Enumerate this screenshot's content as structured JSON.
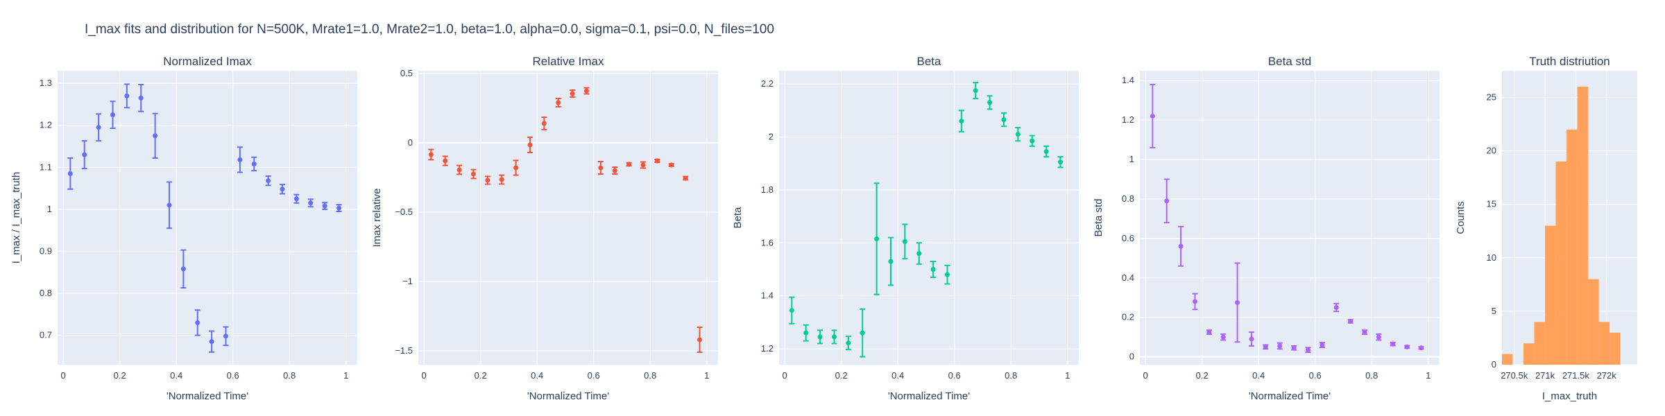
{
  "figure_title": "I_max fits and distribution for N=500K, Mrate1=1.0, Mrate2=1.0, beta=1.0, alpha=0.0, sigma=0.1,  psi=0.0, N_files=100",
  "chart_data": [
    {
      "type": "scatter",
      "title": "Normalized Imax",
      "xlabel": "'Normalized Time'",
      "ylabel": "I_max / I_max_truth",
      "color": "#636efa",
      "xlim": [
        -0.02,
        1.04
      ],
      "ylim": [
        0.63,
        1.33
      ],
      "x_ticks": [
        0,
        0.2,
        0.4,
        0.6,
        0.8,
        1
      ],
      "x_tick_labels": [
        "0",
        "0.2",
        "0.4",
        "0.6",
        "0.8",
        "1"
      ],
      "y_ticks": [
        0.7,
        0.8,
        0.9,
        1.0,
        1.1,
        1.2,
        1.3
      ],
      "y_tick_labels": [
        "0.7",
        "0.8",
        "0.9",
        "1",
        "1.1",
        "1.2",
        "1.3"
      ],
      "x": [
        0.025,
        0.075,
        0.125,
        0.175,
        0.225,
        0.275,
        0.325,
        0.375,
        0.425,
        0.475,
        0.525,
        0.575,
        0.625,
        0.675,
        0.725,
        0.775,
        0.825,
        0.875,
        0.925,
        0.975
      ],
      "y": [
        1.085,
        1.13,
        1.195,
        1.225,
        1.27,
        1.265,
        1.175,
        1.01,
        0.858,
        0.73,
        0.685,
        0.698,
        1.118,
        1.108,
        1.068,
        1.048,
        1.025,
        1.015,
        1.008,
        1.003
      ],
      "err": [
        0.037,
        0.033,
        0.032,
        0.032,
        0.028,
        0.032,
        0.053,
        0.055,
        0.045,
        0.03,
        0.025,
        0.022,
        0.03,
        0.016,
        0.011,
        0.011,
        0.01,
        0.009,
        0.008,
        0.008
      ]
    },
    {
      "type": "scatter",
      "title": "Relative Imax",
      "xlabel": "'Normalized Time'",
      "ylabel": "Imax relative",
      "color": "#ef553b",
      "xlim": [
        -0.02,
        1.04
      ],
      "ylim": [
        -1.6,
        0.52
      ],
      "x_ticks": [
        0,
        0.2,
        0.4,
        0.6,
        0.8,
        1
      ],
      "x_tick_labels": [
        "0",
        "0.2",
        "0.4",
        "0.6",
        "0.8",
        "1"
      ],
      "y_ticks": [
        -1.5,
        -1,
        -0.5,
        0,
        0.5
      ],
      "y_tick_labels": [
        "−1.5",
        "−1",
        "−0.5",
        "0",
        "0.5"
      ],
      "x": [
        0.025,
        0.075,
        0.125,
        0.175,
        0.225,
        0.275,
        0.325,
        0.375,
        0.425,
        0.475,
        0.525,
        0.575,
        0.625,
        0.675,
        0.725,
        0.775,
        0.825,
        0.875,
        0.925,
        0.975
      ],
      "y": [
        -0.085,
        -0.13,
        -0.195,
        -0.225,
        -0.27,
        -0.265,
        -0.18,
        -0.015,
        0.14,
        0.29,
        0.355,
        0.375,
        -0.18,
        -0.2,
        -0.155,
        -0.16,
        -0.13,
        -0.16,
        -0.255,
        -1.42
      ],
      "err": [
        0.037,
        0.033,
        0.032,
        0.032,
        0.028,
        0.032,
        0.053,
        0.055,
        0.045,
        0.03,
        0.025,
        0.022,
        0.045,
        0.025,
        0.011,
        0.022,
        0.01,
        0.009,
        0.012,
        0.09
      ]
    },
    {
      "type": "scatter",
      "title": "Beta",
      "xlabel": "'Normalized Time'",
      "ylabel": "Beta",
      "color": "#00cc96",
      "xlim": [
        -0.02,
        1.04
      ],
      "ylim": [
        1.14,
        2.25
      ],
      "x_ticks": [
        0,
        0.2,
        0.4,
        0.6,
        0.8,
        1
      ],
      "x_tick_labels": [
        "0",
        "0.2",
        "0.4",
        "0.6",
        "0.8",
        "1"
      ],
      "y_ticks": [
        1.2,
        1.4,
        1.6,
        1.8,
        2.0,
        2.2
      ],
      "y_tick_labels": [
        "1.2",
        "1.4",
        "1.6",
        "1.8",
        "2",
        "2.2"
      ],
      "x": [
        0.025,
        0.075,
        0.125,
        0.175,
        0.225,
        0.275,
        0.325,
        0.375,
        0.425,
        0.475,
        0.525,
        0.575,
        0.625,
        0.675,
        0.725,
        0.775,
        0.825,
        0.875,
        0.925,
        0.975
      ],
      "y": [
        1.345,
        1.26,
        1.245,
        1.245,
        1.222,
        1.26,
        1.615,
        1.53,
        1.605,
        1.56,
        1.5,
        1.48,
        2.06,
        2.175,
        2.13,
        2.065,
        2.01,
        1.985,
        1.945,
        1.905
      ],
      "err": [
        0.05,
        0.03,
        0.025,
        0.025,
        0.025,
        0.09,
        0.21,
        0.09,
        0.065,
        0.04,
        0.03,
        0.035,
        0.04,
        0.03,
        0.025,
        0.025,
        0.025,
        0.02,
        0.02,
        0.02
      ]
    },
    {
      "type": "scatter",
      "title": "Beta std",
      "xlabel": "'Normalized Time'",
      "ylabel": "Beta std",
      "color": "#ab63fa",
      "xlim": [
        -0.02,
        1.04
      ],
      "ylim": [
        -0.04,
        1.45
      ],
      "x_ticks": [
        0,
        0.2,
        0.4,
        0.6,
        0.8,
        1
      ],
      "x_tick_labels": [
        "0",
        "0.2",
        "0.4",
        "0.6",
        "0.8",
        "1"
      ],
      "y_ticks": [
        0,
        0.2,
        0.4,
        0.6,
        0.8,
        1.0,
        1.2,
        1.4
      ],
      "y_tick_labels": [
        "0",
        "0.2",
        "0.4",
        "0.6",
        "0.8",
        "1",
        "1.2",
        "1.4"
      ],
      "x": [
        0.025,
        0.075,
        0.125,
        0.175,
        0.225,
        0.275,
        0.325,
        0.375,
        0.425,
        0.475,
        0.525,
        0.575,
        0.625,
        0.675,
        0.725,
        0.775,
        0.825,
        0.875,
        0.925,
        0.975
      ],
      "y": [
        1.22,
        0.79,
        0.56,
        0.28,
        0.125,
        0.1,
        0.275,
        0.09,
        0.05,
        0.055,
        0.045,
        0.035,
        0.06,
        0.25,
        0.18,
        0.125,
        0.1,
        0.065,
        0.05,
        0.045
      ],
      "err": [
        0.16,
        0.11,
        0.1,
        0.04,
        0.01,
        0.015,
        0.2,
        0.035,
        0.01,
        0.015,
        0.01,
        0.012,
        0.012,
        0.02,
        0.008,
        0.01,
        0.015,
        0.008,
        0.006,
        0.006
      ]
    },
    {
      "type": "bar",
      "title": "Truth distriution",
      "xlabel": "I_max_truth",
      "ylabel": "Counts",
      "color": "#ffa15a",
      "xlim": [
        270300,
        272500
      ],
      "ylim": [
        0,
        27.5
      ],
      "x_ticks": [
        270500,
        271000,
        271500,
        272000
      ],
      "x_tick_labels": [
        "270.5k",
        "271k",
        "271.5k",
        "272k"
      ],
      "y_ticks": [
        0,
        5,
        10,
        15,
        20,
        25
      ],
      "y_tick_labels": [
        "0",
        "5",
        "10",
        "15",
        "20",
        "25"
      ],
      "bin_edges": [
        270300,
        270475,
        270650,
        270825,
        271000,
        271175,
        271350,
        271525,
        271700,
        271875,
        272050,
        272225,
        272400
      ],
      "counts": [
        1,
        0,
        2,
        4,
        13,
        19,
        22,
        26,
        8,
        4,
        3,
        0
      ]
    }
  ]
}
